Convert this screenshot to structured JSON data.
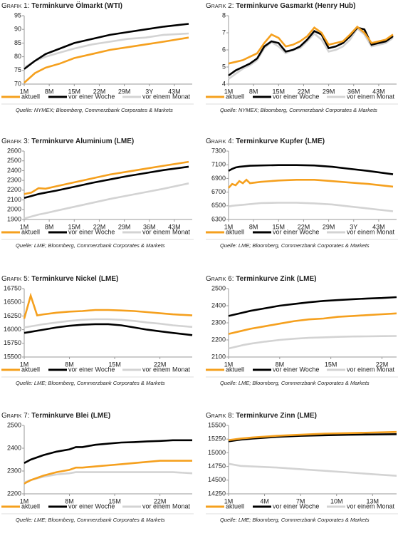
{
  "chart_data": [
    {
      "type": "line",
      "label": "Grafik 1:",
      "title": "Terminkurve Ölmarkt (WTI)",
      "source": "Quelle: NYMEX; Bloomberg, Commerzbank Corporates & Markets",
      "x": [
        1,
        4,
        7,
        11,
        15,
        20,
        25,
        30,
        35,
        40,
        47
      ],
      "xlim": [
        1,
        48
      ],
      "xticks": [
        {
          "value": 1,
          "label": "1M"
        },
        {
          "value": 8,
          "label": "8M"
        },
        {
          "value": 15,
          "label": "15M"
        },
        {
          "value": 22,
          "label": "22M"
        },
        {
          "value": 29,
          "label": "29M"
        },
        {
          "value": 36,
          "label": "3Y"
        },
        {
          "value": 43,
          "label": "43M"
        }
      ],
      "ylim": [
        70,
        95
      ],
      "yticks": [
        70,
        75,
        80,
        85,
        90,
        95
      ],
      "series": [
        {
          "name": "aktuell",
          "color": "#f5a01e",
          "values": [
            70.5,
            74,
            76,
            77.5,
            79.5,
            81,
            82.5,
            83.5,
            84.5,
            85.5,
            87
          ]
        },
        {
          "name": "vor einer Woche",
          "color": "#000000",
          "values": [
            75.5,
            78.5,
            81,
            83,
            85,
            86.5,
            88,
            89,
            90,
            91,
            92
          ]
        },
        {
          "name": "vor einem Monat",
          "color": "#d3d3d3",
          "values": [
            76,
            78.5,
            80,
            81.5,
            83,
            84.5,
            85.5,
            86.5,
            87,
            88,
            88.5
          ]
        }
      ]
    },
    {
      "type": "line",
      "label": "Grafik 2:",
      "title": "Terminkurve Gasmarkt (Henry Hub)",
      "source": "Quelle: NYMEX; Bloomberg, Commerzbank Corporates & Markets",
      "x": [
        1,
        3,
        5,
        7,
        9,
        11,
        13,
        15,
        17,
        19,
        21,
        23,
        25,
        27,
        29,
        31,
        33,
        35,
        37,
        39,
        41,
        43,
        45,
        47
      ],
      "xlim": [
        1,
        48
      ],
      "xticks": [
        {
          "value": 1,
          "label": "1M"
        },
        {
          "value": 8,
          "label": "8M"
        },
        {
          "value": 15,
          "label": "15M"
        },
        {
          "value": 22,
          "label": "22M"
        },
        {
          "value": 29,
          "label": "29M"
        },
        {
          "value": 36,
          "label": "36M"
        },
        {
          "value": 43,
          "label": "43M"
        }
      ],
      "ylim": [
        4,
        8
      ],
      "yticks": [
        4,
        5,
        6,
        7,
        8
      ],
      "series": [
        {
          "name": "aktuell",
          "color": "#f5a01e",
          "values": [
            5.2,
            5.3,
            5.4,
            5.6,
            5.8,
            6.4,
            6.9,
            6.7,
            6.2,
            6.3,
            6.5,
            6.8,
            7.3,
            7.0,
            6.3,
            6.4,
            6.5,
            6.9,
            7.35,
            7.0,
            6.4,
            6.5,
            6.6,
            6.9
          ]
        },
        {
          "name": "vor einer Woche",
          "color": "#000000",
          "values": [
            4.5,
            4.8,
            5.0,
            5.2,
            5.5,
            6.2,
            6.5,
            6.4,
            5.9,
            6.0,
            6.2,
            6.6,
            7.1,
            6.9,
            6.1,
            6.2,
            6.4,
            6.8,
            7.3,
            7.2,
            6.3,
            6.4,
            6.5,
            6.8
          ]
        },
        {
          "name": "vor einem Monat",
          "color": "#d3d3d3",
          "values": [
            4.3,
            4.6,
            4.9,
            5.1,
            5.4,
            6.1,
            6.45,
            6.2,
            5.8,
            6.0,
            6.1,
            6.5,
            6.95,
            6.6,
            5.9,
            6.0,
            6.2,
            6.6,
            7.25,
            6.9,
            6.2,
            6.3,
            6.4,
            6.7
          ]
        }
      ]
    },
    {
      "type": "line",
      "label": "Grafik 3:",
      "title": "Terminkurve Aluminium (LME)",
      "source": "Quelle: LME; Bloomberg, Commerzbank Corporates & Markets",
      "x": [
        1,
        3,
        5,
        7,
        10,
        15,
        20,
        25,
        30,
        35,
        40,
        47
      ],
      "xlim": [
        1,
        48
      ],
      "xticks": [
        {
          "value": 1,
          "label": "1M"
        },
        {
          "value": 8,
          "label": "8M"
        },
        {
          "value": 15,
          "label": "15M"
        },
        {
          "value": 22,
          "label": "22M"
        },
        {
          "value": 29,
          "label": "29M"
        },
        {
          "value": 36,
          "label": "36M"
        },
        {
          "value": 43,
          "label": "43M"
        }
      ],
      "ylim": [
        1900,
        2600
      ],
      "yticks": [
        1900,
        2000,
        2100,
        2200,
        2300,
        2400,
        2500,
        2600
      ],
      "series": [
        {
          "name": "aktuell",
          "color": "#f5a01e",
          "values": [
            2160,
            2175,
            2220,
            2215,
            2240,
            2280,
            2320,
            2360,
            2390,
            2420,
            2450,
            2490
          ]
        },
        {
          "name": "vor einer Woche",
          "color": "#000000",
          "values": [
            2120,
            2140,
            2160,
            2175,
            2195,
            2235,
            2275,
            2310,
            2345,
            2375,
            2405,
            2440
          ]
        },
        {
          "name": "vor einem Monat",
          "color": "#d3d3d3",
          "values": [
            1910,
            1930,
            1950,
            1965,
            1990,
            2030,
            2070,
            2110,
            2145,
            2180,
            2215,
            2270
          ]
        }
      ]
    },
    {
      "type": "line",
      "label": "Grafik 4:",
      "title": "Terminkurve Kupfer (LME)",
      "source": "Quelle: LME; Bloomberg, Commerzbank Corporates & Markets",
      "x": [
        1,
        2,
        3,
        4,
        5,
        6,
        7,
        10,
        15,
        20,
        25,
        30,
        35,
        40,
        47
      ],
      "xlim": [
        1,
        48
      ],
      "xticks": [
        {
          "value": 1,
          "label": "1M"
        },
        {
          "value": 8,
          "label": "8M"
        },
        {
          "value": 15,
          "label": "15M"
        },
        {
          "value": 22,
          "label": "22M"
        },
        {
          "value": 29,
          "label": "29M"
        },
        {
          "value": 36,
          "label": "3Y"
        },
        {
          "value": 43,
          "label": "43M"
        }
      ],
      "ylim": [
        6300,
        7300
      ],
      "yticks": [
        6300,
        6500,
        6700,
        6900,
        7100,
        7300
      ],
      "series": [
        {
          "name": "aktuell",
          "color": "#f5a01e",
          "values": [
            6760,
            6820,
            6800,
            6860,
            6830,
            6880,
            6830,
            6850,
            6870,
            6880,
            6880,
            6860,
            6840,
            6820,
            6780
          ]
        },
        {
          "name": "vor einer Woche",
          "color": "#000000",
          "values": [
            7010,
            7040,
            7060,
            7070,
            7075,
            7080,
            7085,
            7090,
            7095,
            7095,
            7090,
            7070,
            7040,
            7010,
            6960
          ]
        },
        {
          "name": "vor einem Monat",
          "color": "#d3d3d3",
          "values": [
            6490,
            6500,
            6505,
            6510,
            6515,
            6520,
            6525,
            6540,
            6545,
            6545,
            6535,
            6520,
            6490,
            6460,
            6420
          ]
        }
      ]
    },
    {
      "type": "line",
      "label": "Grafik 5:",
      "title": "Terminkurve Nickel (LME)",
      "source": "Quelle: LME; Bloomberg, Commerzbank Corporates & Markets",
      "x": [
        1,
        2,
        3,
        4,
        6,
        8,
        10,
        12,
        14,
        16,
        18,
        20,
        22,
        24,
        27
      ],
      "xlim": [
        1,
        27
      ],
      "xticks": [
        {
          "value": 1,
          "label": "1M"
        },
        {
          "value": 8,
          "label": "8M"
        },
        {
          "value": 15,
          "label": "15M"
        },
        {
          "value": 22,
          "label": "22M"
        }
      ],
      "ylim": [
        15500,
        16750
      ],
      "yticks": [
        15500,
        15750,
        16000,
        16250,
        16500,
        16750
      ],
      "series": [
        {
          "name": "aktuell",
          "color": "#f5a01e",
          "values": [
            16200,
            16620,
            16260,
            16280,
            16310,
            16330,
            16340,
            16360,
            16360,
            16350,
            16340,
            16320,
            16300,
            16280,
            16260
          ]
        },
        {
          "name": "vor einer Woche",
          "color": "#000000",
          "values": [
            15940,
            15960,
            15980,
            16000,
            16040,
            16070,
            16090,
            16100,
            16100,
            16080,
            16040,
            16000,
            15970,
            15940,
            15900
          ]
        },
        {
          "name": "vor einem Monat",
          "color": "#d3d3d3",
          "values": [
            16040,
            16060,
            16080,
            16100,
            16130,
            16160,
            16180,
            16190,
            16190,
            16180,
            16160,
            16130,
            16110,
            16080,
            16050
          ]
        }
      ]
    },
    {
      "type": "line",
      "label": "Grafik 6:",
      "title": "Terminkurve Zink (LME)",
      "source": "Quelle: LME; Bloomberg, Commerzbank Corporates & Markets",
      "x": [
        1,
        2,
        3,
        4,
        6,
        8,
        10,
        12,
        14,
        16,
        18,
        20,
        22,
        24
      ],
      "xlim": [
        1,
        24
      ],
      "xticks": [
        {
          "value": 1,
          "label": "1M"
        },
        {
          "value": 8,
          "label": "8M"
        },
        {
          "value": 15,
          "label": "15M"
        },
        {
          "value": 22,
          "label": "22M"
        }
      ],
      "ylim": [
        2100,
        2500
      ],
      "yticks": [
        2100,
        2200,
        2300,
        2400,
        2500
      ],
      "series": [
        {
          "name": "aktuell",
          "color": "#f5a01e",
          "values": [
            2235,
            2245,
            2255,
            2265,
            2280,
            2295,
            2310,
            2320,
            2325,
            2335,
            2340,
            2345,
            2350,
            2355
          ]
        },
        {
          "name": "vor einer Woche",
          "color": "#000000",
          "values": [
            2340,
            2350,
            2360,
            2370,
            2385,
            2400,
            2410,
            2420,
            2428,
            2433,
            2438,
            2442,
            2445,
            2450
          ]
        },
        {
          "name": "vor einem Monat",
          "color": "#d3d3d3",
          "values": [
            2150,
            2160,
            2170,
            2178,
            2190,
            2200,
            2207,
            2212,
            2215,
            2218,
            2220,
            2221,
            2222,
            2223
          ]
        }
      ]
    },
    {
      "type": "line",
      "label": "Grafik 7:",
      "title": "Terminkurve Blei (LME)",
      "source": "Quelle: LME; Bloomberg, Commerzbank Corporates & Markets",
      "x": [
        1,
        2,
        4,
        6,
        8,
        9,
        10,
        12,
        14,
        16,
        18,
        20,
        22,
        24,
        27
      ],
      "xlim": [
        1,
        27
      ],
      "xticks": [
        {
          "value": 1,
          "label": "1M"
        },
        {
          "value": 8,
          "label": "8M"
        },
        {
          "value": 15,
          "label": "15M"
        },
        {
          "value": 22,
          "label": "22M"
        }
      ],
      "ylim": [
        2200,
        2500
      ],
      "yticks": [
        2200,
        2300,
        2400,
        2500
      ],
      "series": [
        {
          "name": "aktuell",
          "color": "#f5a01e",
          "values": [
            2245,
            2260,
            2280,
            2295,
            2305,
            2315,
            2315,
            2320,
            2325,
            2330,
            2335,
            2340,
            2345,
            2345,
            2345
          ]
        },
        {
          "name": "vor einer Woche",
          "color": "#000000",
          "values": [
            2335,
            2350,
            2370,
            2385,
            2395,
            2405,
            2405,
            2415,
            2420,
            2425,
            2427,
            2430,
            2432,
            2435,
            2435
          ]
        },
        {
          "name": "vor einem Monat",
          "color": "#d3d3d3",
          "values": [
            2250,
            2260,
            2275,
            2285,
            2290,
            2295,
            2295,
            2295,
            2295,
            2295,
            2295,
            2295,
            2295,
            2295,
            2290
          ]
        }
      ]
    },
    {
      "type": "line",
      "label": "Grafik 8:",
      "title": "Terminkurve Zinn (LME)",
      "source": "Quelle: LME; Bloomberg, Commerzbank Corporates & Markets",
      "x": [
        1,
        2,
        3,
        5,
        7,
        9,
        11,
        13,
        15
      ],
      "xlim": [
        1,
        15
      ],
      "xticks": [
        {
          "value": 1,
          "label": "1M"
        },
        {
          "value": 4,
          "label": "4M"
        },
        {
          "value": 7,
          "label": "7M"
        },
        {
          "value": 10,
          "label": "10M"
        },
        {
          "value": 13,
          "label": "13M"
        }
      ],
      "ylim": [
        14250,
        15500
      ],
      "yticks": [
        14250,
        14500,
        14750,
        15000,
        15250,
        15500
      ],
      "series": [
        {
          "name": "aktuell",
          "color": "#f5a01e",
          "values": [
            15230,
            15260,
            15280,
            15310,
            15330,
            15350,
            15360,
            15370,
            15380
          ]
        },
        {
          "name": "vor einer Woche",
          "color": "#000000",
          "values": [
            15210,
            15240,
            15260,
            15290,
            15310,
            15320,
            15330,
            15335,
            15340
          ]
        },
        {
          "name": "vor einem Monat",
          "color": "#d3d3d3",
          "values": [
            14800,
            14760,
            14750,
            14730,
            14700,
            14670,
            14640,
            14610,
            14580
          ]
        }
      ]
    }
  ]
}
